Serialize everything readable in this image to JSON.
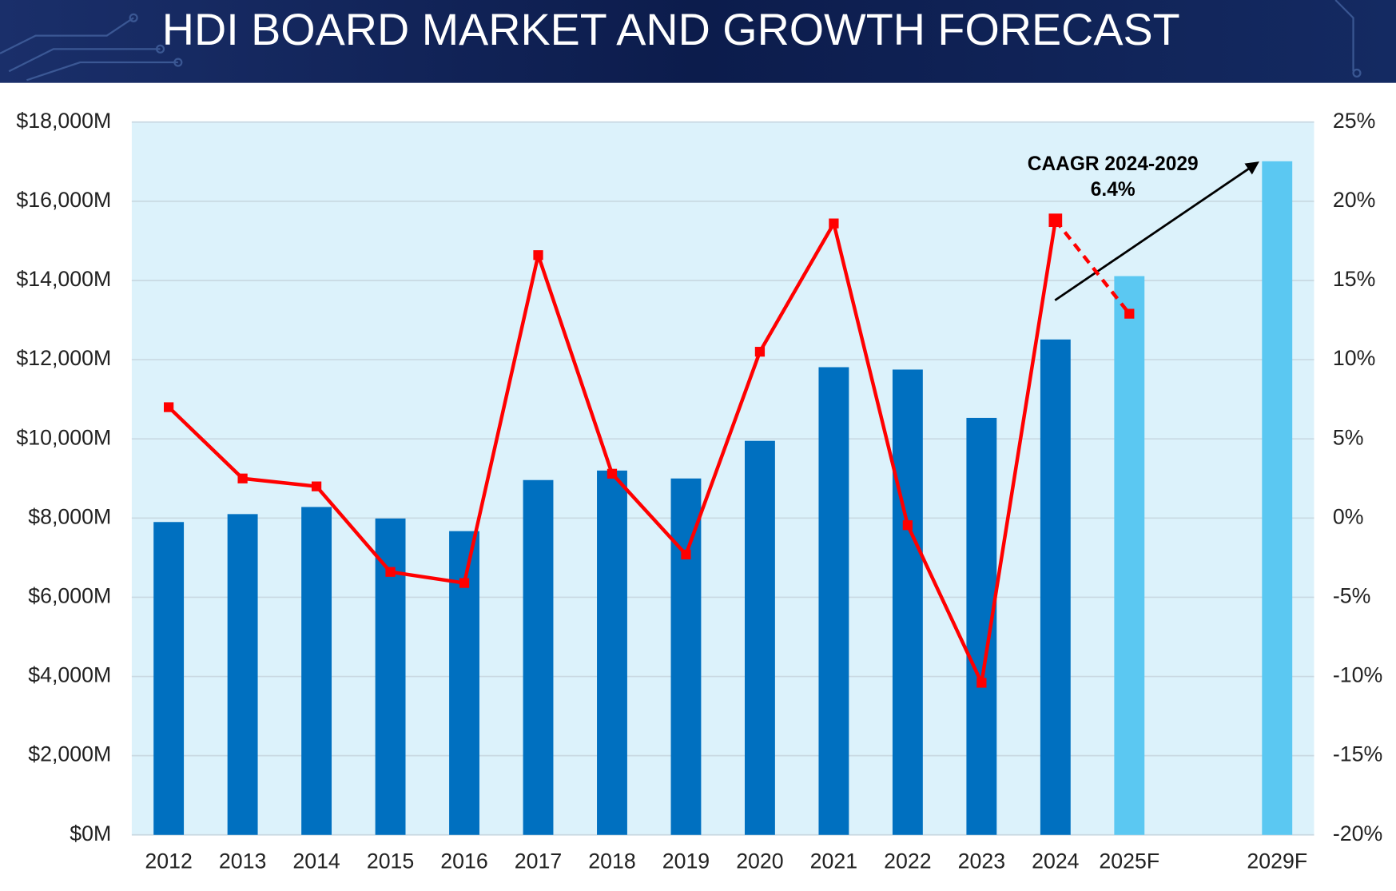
{
  "chart_data": {
    "type": "bar",
    "title": "HDI BOARD MARKET AND GROWTH FORECAST",
    "categories": [
      "2012",
      "2013",
      "2014",
      "2015",
      "2016",
      "2017",
      "2018",
      "2019",
      "2020",
      "2021",
      "2022",
      "2023",
      "2024",
      "2025F",
      null,
      "2029F"
    ],
    "series": [
      {
        "type": "bar",
        "axis": "y",
        "color": "#0070c0",
        "colors": [
          "#0070c0",
          "#0070c0",
          "#0070c0",
          "#0070c0",
          "#0070c0",
          "#0070c0",
          "#0070c0",
          "#0070c0",
          "#0070c0",
          "#0070c0",
          "#0070c0",
          "#0070c0",
          "#0070c0",
          "#5bc8f2",
          null,
          "#5bc8f2"
        ],
        "values": [
          7900,
          8100,
          8280,
          7990,
          7670,
          8960,
          9200,
          9000,
          9950,
          11810,
          11750,
          10530,
          12510,
          14110,
          null,
          17010
        ]
      },
      {
        "type": "line",
        "axis": "y2",
        "color": "#ff0000",
        "dashed_after": "2024",
        "values": [
          7.0,
          2.5,
          2.0,
          -3.4,
          -4.1,
          16.6,
          2.8,
          -2.3,
          10.5,
          18.6,
          -0.45,
          -10.4,
          18.8,
          12.9,
          null,
          null
        ]
      }
    ],
    "ylim": [
      0,
      18000
    ],
    "yticks": [
      {
        "value": 0,
        "label": "$0M"
      },
      {
        "value": 2000,
        "label": "$2,000M"
      },
      {
        "value": 4000,
        "label": "$4,000M"
      },
      {
        "value": 6000,
        "label": "$6,000M"
      },
      {
        "value": 8000,
        "label": "$8,000M"
      },
      {
        "value": 10000,
        "label": "$10,000M"
      },
      {
        "value": 12000,
        "label": "$12,000M"
      },
      {
        "value": 14000,
        "label": "$14,000M"
      },
      {
        "value": 16000,
        "label": "$16,000M"
      },
      {
        "value": 18000,
        "label": "$18,000M"
      }
    ],
    "y2lim": [
      -20,
      25
    ],
    "y2ticks": [
      {
        "value": -20,
        "label": "-20%"
      },
      {
        "value": -15,
        "label": "-15%"
      },
      {
        "value": -10,
        "label": "-10%"
      },
      {
        "value": -5,
        "label": "-5%"
      },
      {
        "value": 0,
        "label": "0%"
      },
      {
        "value": 5,
        "label": "5%"
      },
      {
        "value": 10,
        "label": "10%"
      },
      {
        "value": 15,
        "label": "15%"
      },
      {
        "value": 20,
        "label": "20%"
      },
      {
        "value": 25,
        "label": "25%"
      }
    ],
    "grid": true,
    "annotations": [
      "CAAGR 2024-2029",
      "6.4%"
    ]
  }
}
